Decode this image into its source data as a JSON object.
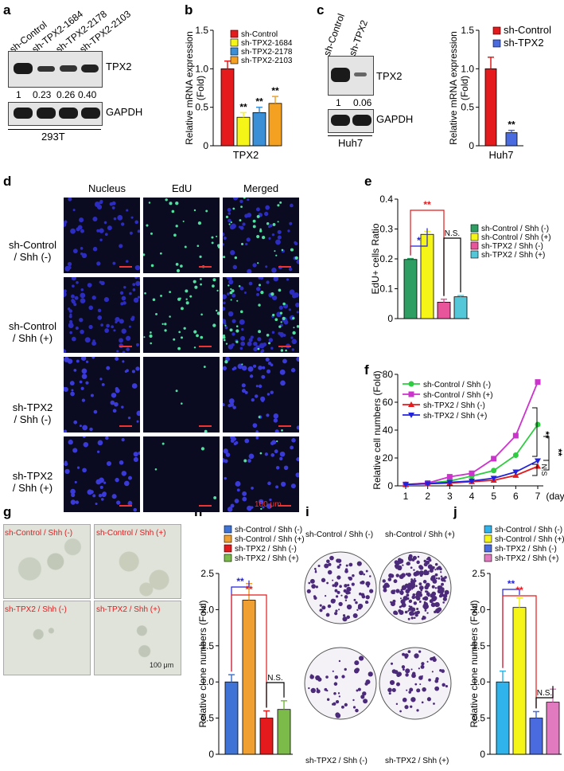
{
  "panels": [
    "a",
    "b",
    "c",
    "d",
    "e",
    "f",
    "g",
    "h",
    "i",
    "j"
  ],
  "a": {
    "lanes": [
      "sh-Control",
      "sh-TPX2-1684",
      "sh-TPX2-2178",
      "sh-TPX2-2103"
    ],
    "protein1": "TPX2",
    "protein2": "GAPDH",
    "quant": [
      "1",
      "0.23",
      "0.26",
      "0.40"
    ],
    "cell_line": "293T"
  },
  "c_blot": {
    "lanes": [
      "sh-Control",
      "sh-TPX2"
    ],
    "protein1": "TPX2",
    "protein2": "GAPDH",
    "quant": [
      "1",
      "0.06"
    ],
    "cell_line": "Huh7"
  },
  "d": {
    "columns": [
      "Nucleus",
      "EdU",
      "Merged"
    ],
    "rows": [
      "sh-Control\n/ Shh (-)",
      "sh-Control\n/ Shh (+)",
      "sh-TPX2\n/ Shh (-)",
      "sh-TPX2\n/ Shh (+)"
    ],
    "scale": "100 μm"
  },
  "g": {
    "labels": [
      "sh-Control / Shh (-)",
      "sh-Control / Shh (+)",
      "sh-TPX2 / Shh (-)",
      "sh-TPX2 / Shh (+)"
    ],
    "scale": "100 μm"
  },
  "i": {
    "labels": [
      "sh-Control / Shh (-)",
      "sh-Control / Shh (+)",
      "sh-TPX2 / Shh (-)",
      "sh-TPX2 / Shh (+)"
    ]
  },
  "colors": {
    "red": "#e41a1c",
    "yellow": "#f5f518",
    "blue": "#3b8fd6",
    "orange": "#f4a020",
    "green": "#2e9e63",
    "pink": "#e8559a",
    "cyan": "#54c8d8",
    "magenta": "#cc33cc",
    "royal": "#2222dd",
    "lime": "#2ecc40",
    "cyanj": "#2fb3ea",
    "purple": "#4a6adf",
    "lightpink": "#e27ac0",
    "olive": "#7cba4a",
    "h_blue": "#3f74d6",
    "h_orange": "#f0a030"
  },
  "chart_data": [
    {
      "id": "b",
      "type": "bar",
      "categories": [
        "TPX2"
      ],
      "series": [
        {
          "name": "sh-Control",
          "values": [
            1.0
          ],
          "err": [
            0.1
          ]
        },
        {
          "name": "sh-TPX2-1684",
          "values": [
            0.37
          ],
          "err": [
            0.06
          ]
        },
        {
          "name": "sh-TPX2-2178",
          "values": [
            0.43
          ],
          "err": [
            0.07
          ]
        },
        {
          "name": "sh-TPX2-2103",
          "values": [
            0.55
          ],
          "err": [
            0.09
          ]
        }
      ],
      "sig": [
        "",
        "**",
        "**",
        "**"
      ],
      "ylabel": "Relative mRNA expression\n(Fold)",
      "xlabel": "TPX2",
      "ylim": [
        0,
        1.5
      ],
      "yticks": [
        "0",
        "0.5",
        "1.0",
        "1.5"
      ]
    },
    {
      "id": "c",
      "type": "bar",
      "series": [
        {
          "name": "sh-Control",
          "values": [
            1.0
          ],
          "err": [
            0.15
          ]
        },
        {
          "name": "sh-TPX2",
          "values": [
            0.17
          ],
          "err": [
            0.03
          ]
        }
      ],
      "sig": [
        "",
        "**"
      ],
      "ylabel": "Relative mRNA expression\n(Fold)",
      "xlabel": "Huh7",
      "ylim": [
        0,
        1.5
      ],
      "yticks": [
        "0",
        "0.5",
        "1.0",
        "1.5"
      ]
    },
    {
      "id": "e",
      "type": "bar",
      "series": [
        {
          "name": "sh-Control / Shh (-)",
          "values": [
            0.198
          ],
          "err": [
            0.003
          ]
        },
        {
          "name": "sh-Control / Shh (+)",
          "values": [
            0.282
          ],
          "err": [
            0.01
          ]
        },
        {
          "name": "sh-TPX2 / Shh (-)",
          "values": [
            0.055
          ],
          "err": [
            0.01
          ]
        },
        {
          "name": "sh-TPX2 / Shh (+)",
          "values": [
            0.073
          ],
          "err": [
            0.004
          ]
        }
      ],
      "brackets": [
        {
          "from": 0,
          "to": 1,
          "label": "*",
          "color": "#2222dd"
        },
        {
          "from": 0,
          "to": 2,
          "label": "**",
          "color": "#e41a1c"
        },
        {
          "from": 2,
          "to": 3,
          "label": "N.S.",
          "color": "#000000"
        }
      ],
      "ylabel": "EdU+ cells Ratio",
      "ylim": [
        0,
        0.4
      ],
      "yticks": [
        "0",
        "0.1",
        "0.2",
        "0.3",
        "0.4"
      ]
    },
    {
      "id": "f",
      "type": "line",
      "x": [
        1,
        2,
        3,
        4,
        5,
        6,
        7
      ],
      "xticks": [
        "1",
        "2",
        "3",
        "4",
        "5",
        "6",
        "7",
        "(day)"
      ],
      "series": [
        {
          "name": "sh-Control / Shh (-)",
          "values": [
            1,
            2,
            3.5,
            7,
            11,
            22,
            44
          ]
        },
        {
          "name": "sh-Control / Shh (+)",
          "values": [
            1,
            2,
            6.5,
            9,
            19.5,
            36,
            74.5
          ]
        },
        {
          "name": "sh-TPX2 / Shh (-)",
          "values": [
            1,
            1.5,
            2,
            3,
            4,
            7.5,
            14
          ]
        },
        {
          "name": "sh-TPX2 / Shh (+)",
          "values": [
            1,
            1.5,
            2.5,
            3.5,
            5.5,
            10,
            18
          ]
        }
      ],
      "sig": [
        "**",
        "N.S",
        "**"
      ],
      "ylabel": "Relative cell numbers (Fold)",
      "ylim": [
        0,
        80
      ],
      "yticks": [
        "0",
        "20",
        "40",
        "60",
        "80"
      ]
    },
    {
      "id": "h",
      "type": "bar",
      "series": [
        {
          "name": "sh-Control / Shh (-)",
          "values": [
            1.0
          ],
          "err": [
            0.1
          ]
        },
        {
          "name": "sh-Control / Shh (+)",
          "values": [
            2.13
          ],
          "err": [
            0.23
          ]
        },
        {
          "name": "sh-TPX2 / Shh (-)",
          "values": [
            0.5
          ],
          "err": [
            0.1
          ]
        },
        {
          "name": "sh-TPX2 / Shh (+)",
          "values": [
            0.62
          ],
          "err": [
            0.12
          ]
        }
      ],
      "brackets": [
        {
          "from": 0,
          "to": 1,
          "label": "**",
          "color": "#2222dd"
        },
        {
          "from": 0,
          "to": 2,
          "label": "**",
          "color": "#e41a1c"
        },
        {
          "from": 2,
          "to": 3,
          "label": "N.S.",
          "color": "#000000"
        }
      ],
      "ylabel": "Relative clone numbers (Fold)",
      "ylim": [
        0,
        2.5
      ],
      "yticks": [
        "0",
        "0.5",
        "1.0",
        "1.5",
        "2.0",
        "2.5"
      ]
    },
    {
      "id": "j",
      "type": "bar",
      "series": [
        {
          "name": "sh-Control / Shh (-)",
          "values": [
            1.0
          ],
          "err": [
            0.15
          ]
        },
        {
          "name": "sh-Control / Shh (+)",
          "values": [
            2.03
          ],
          "err": [
            0.13
          ]
        },
        {
          "name": "sh-TPX2 / Shh (-)",
          "values": [
            0.5
          ],
          "err": [
            0.09
          ]
        },
        {
          "name": "sh-TPX2 / Shh (+)",
          "values": [
            0.72
          ],
          "err": [
            0.18
          ]
        }
      ],
      "brackets": [
        {
          "from": 0,
          "to": 1,
          "label": "**",
          "color": "#2222dd"
        },
        {
          "from": 0,
          "to": 2,
          "label": "**",
          "color": "#e41a1c"
        },
        {
          "from": 2,
          "to": 3,
          "label": "N.S.",
          "color": "#000000"
        }
      ],
      "ylabel": "Relative clone numbers (Fold)",
      "ylim": [
        0,
        2.5
      ],
      "yticks": [
        "0",
        "0.5",
        "1.0",
        "1.5",
        "2.0",
        "2.5"
      ]
    }
  ]
}
